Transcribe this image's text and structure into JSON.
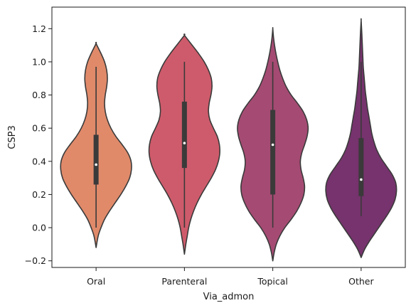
{
  "chart_data": {
    "type": "violin",
    "xlabel": "Via_admon",
    "ylabel": "CSP3",
    "ylim": [
      -0.24,
      1.33
    ],
    "yticks": [
      -0.2,
      0.0,
      0.2,
      0.4,
      0.6,
      0.8,
      1.0,
      1.2
    ],
    "ytick_labels": [
      "−0.2",
      "0.0",
      "0.2",
      "0.4",
      "0.6",
      "0.8",
      "1.0",
      "1.2"
    ],
    "categories": [
      "Oral",
      "Parenteral",
      "Topical",
      "Other"
    ],
    "grid": false,
    "violins": [
      {
        "category": "Oral",
        "color": "#e08a6a",
        "min": 0.0,
        "q1": 0.26,
        "median": 0.38,
        "q3": 0.56,
        "max": 0.97,
        "kde_low": -0.12,
        "kde_high": 1.11,
        "density": [
          [
            -0.12,
            0.0
          ],
          [
            -0.05,
            0.06
          ],
          [
            0.0,
            0.14
          ],
          [
            0.05,
            0.24
          ],
          [
            0.1,
            0.38
          ],
          [
            0.15,
            0.54
          ],
          [
            0.2,
            0.7
          ],
          [
            0.25,
            0.84
          ],
          [
            0.3,
            0.95
          ],
          [
            0.35,
            1.0
          ],
          [
            0.4,
            0.99
          ],
          [
            0.45,
            0.9
          ],
          [
            0.5,
            0.74
          ],
          [
            0.55,
            0.56
          ],
          [
            0.6,
            0.42
          ],
          [
            0.65,
            0.32
          ],
          [
            0.7,
            0.26
          ],
          [
            0.75,
            0.24
          ],
          [
            0.8,
            0.26
          ],
          [
            0.85,
            0.3
          ],
          [
            0.9,
            0.32
          ],
          [
            0.95,
            0.3
          ],
          [
            1.0,
            0.24
          ],
          [
            1.05,
            0.14
          ],
          [
            1.11,
            0.0
          ]
        ]
      },
      {
        "category": "Parenteral",
        "color": "#ce5b6b",
        "min": 0.0,
        "q1": 0.36,
        "median": 0.51,
        "q3": 0.76,
        "max": 1.0,
        "kde_low": -0.16,
        "kde_high": 1.16,
        "density": [
          [
            -0.16,
            0.0
          ],
          [
            -0.1,
            0.04
          ],
          [
            -0.05,
            0.08
          ],
          [
            0.0,
            0.12
          ],
          [
            0.05,
            0.18
          ],
          [
            0.1,
            0.26
          ],
          [
            0.15,
            0.36
          ],
          [
            0.2,
            0.48
          ],
          [
            0.25,
            0.62
          ],
          [
            0.3,
            0.76
          ],
          [
            0.35,
            0.88
          ],
          [
            0.4,
            0.96
          ],
          [
            0.45,
            1.0
          ],
          [
            0.5,
            0.99
          ],
          [
            0.55,
            0.93
          ],
          [
            0.6,
            0.82
          ],
          [
            0.65,
            0.72
          ],
          [
            0.7,
            0.68
          ],
          [
            0.75,
            0.7
          ],
          [
            0.8,
            0.75
          ],
          [
            0.85,
            0.78
          ],
          [
            0.9,
            0.76
          ],
          [
            0.95,
            0.68
          ],
          [
            1.0,
            0.56
          ],
          [
            1.05,
            0.4
          ],
          [
            1.1,
            0.22
          ],
          [
            1.16,
            0.0
          ]
        ]
      },
      {
        "category": "Topical",
        "color": "#a54b73",
        "min": 0.0,
        "q1": 0.2,
        "median": 0.5,
        "q3": 0.71,
        "max": 1.0,
        "kde_low": -0.2,
        "kde_high": 1.2,
        "density": [
          [
            -0.2,
            0.0
          ],
          [
            -0.15,
            0.04
          ],
          [
            -0.1,
            0.1
          ],
          [
            -0.05,
            0.2
          ],
          [
            0.0,
            0.34
          ],
          [
            0.05,
            0.52
          ],
          [
            0.1,
            0.68
          ],
          [
            0.15,
            0.8
          ],
          [
            0.2,
            0.88
          ],
          [
            0.25,
            0.9
          ],
          [
            0.3,
            0.86
          ],
          [
            0.35,
            0.8
          ],
          [
            0.4,
            0.78
          ],
          [
            0.45,
            0.82
          ],
          [
            0.5,
            0.9
          ],
          [
            0.55,
            0.97
          ],
          [
            0.6,
            1.0
          ],
          [
            0.65,
            0.96
          ],
          [
            0.7,
            0.86
          ],
          [
            0.75,
            0.7
          ],
          [
            0.8,
            0.52
          ],
          [
            0.85,
            0.38
          ],
          [
            0.9,
            0.28
          ],
          [
            0.95,
            0.2
          ],
          [
            1.0,
            0.14
          ],
          [
            1.05,
            0.09
          ],
          [
            1.1,
            0.05
          ],
          [
            1.15,
            0.02
          ],
          [
            1.2,
            0.0
          ]
        ]
      },
      {
        "category": "Other",
        "color": "#76336d",
        "min": 0.07,
        "q1": 0.19,
        "median": 0.29,
        "q3": 0.54,
        "max": 1.0,
        "kde_low": -0.18,
        "kde_high": 1.25,
        "density": [
          [
            -0.18,
            0.0
          ],
          [
            -0.13,
            0.1
          ],
          [
            -0.08,
            0.24
          ],
          [
            -0.03,
            0.4
          ],
          [
            0.02,
            0.56
          ],
          [
            0.07,
            0.72
          ],
          [
            0.12,
            0.86
          ],
          [
            0.17,
            0.96
          ],
          [
            0.22,
            1.0
          ],
          [
            0.27,
            0.98
          ],
          [
            0.32,
            0.88
          ],
          [
            0.37,
            0.72
          ],
          [
            0.42,
            0.56
          ],
          [
            0.47,
            0.44
          ],
          [
            0.52,
            0.36
          ],
          [
            0.57,
            0.3
          ],
          [
            0.62,
            0.26
          ],
          [
            0.67,
            0.22
          ],
          [
            0.72,
            0.18
          ],
          [
            0.77,
            0.15
          ],
          [
            0.82,
            0.12
          ],
          [
            0.87,
            0.1
          ],
          [
            0.92,
            0.08
          ],
          [
            0.97,
            0.06
          ],
          [
            1.02,
            0.05
          ],
          [
            1.07,
            0.04
          ],
          [
            1.12,
            0.03
          ],
          [
            1.17,
            0.02
          ],
          [
            1.25,
            0.0
          ]
        ]
      }
    ]
  }
}
